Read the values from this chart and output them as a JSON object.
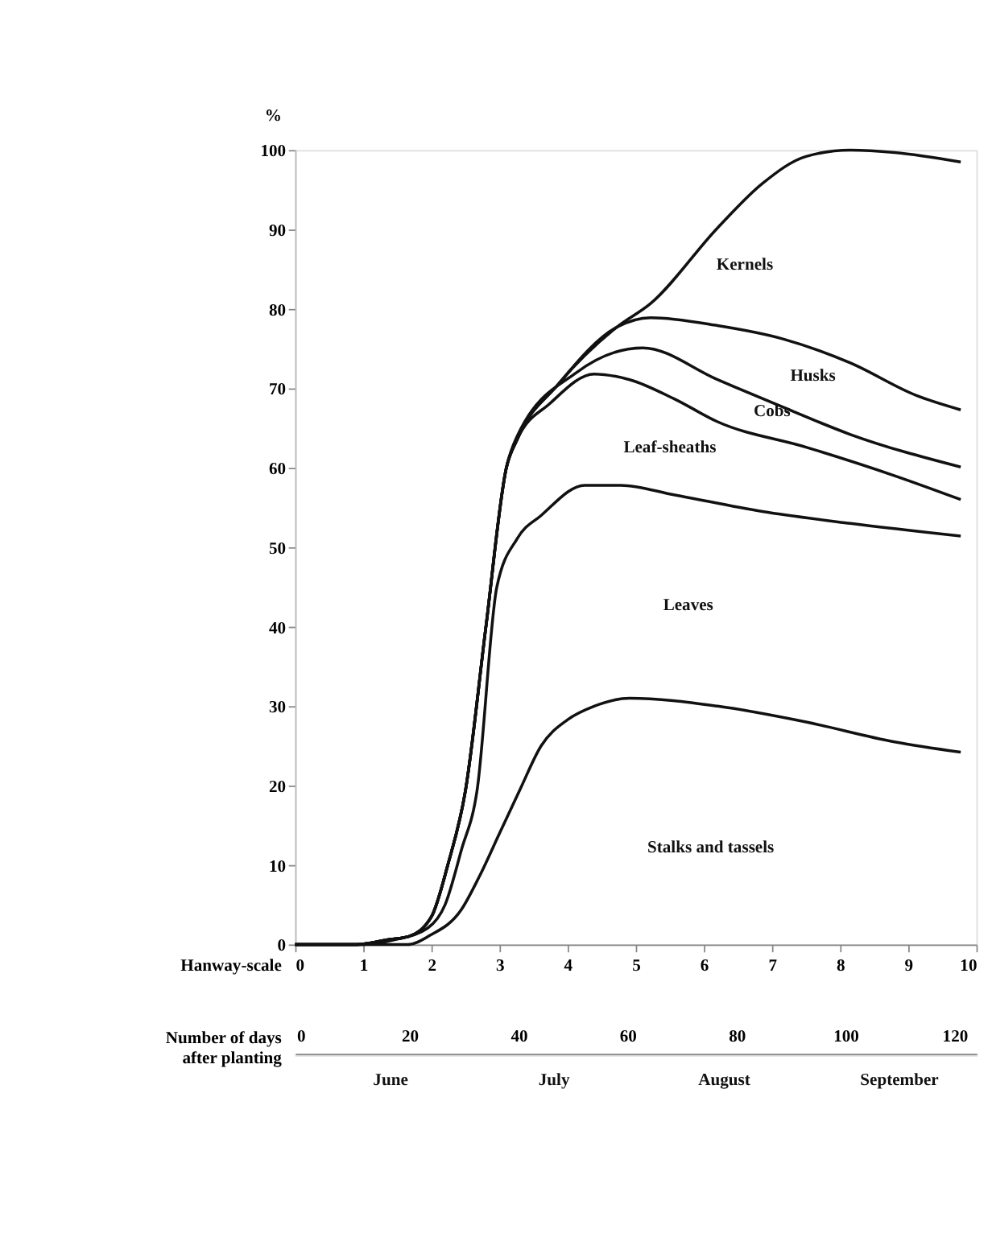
{
  "chart_data": {
    "type": "line",
    "ylabel": "%",
    "xlabel": "Hanway-scale",
    "x2label": "Number of days after planting",
    "xlim": [
      0,
      10
    ],
    "xticks": [
      0,
      1,
      2,
      3,
      4,
      5,
      6,
      7,
      8,
      9,
      10
    ],
    "x2lim": [
      -1,
      124
    ],
    "x2ticks": [
      0,
      20,
      40,
      60,
      80,
      100,
      120
    ],
    "ylim": [
      0,
      100
    ],
    "yticks": [
      0,
      10,
      20,
      30,
      40,
      50,
      60,
      70,
      80,
      90,
      100
    ],
    "grid": false,
    "series": [
      {
        "color": "#111111",
        "x": [
          0,
          0.9,
          1.36,
          1.66,
          2.0,
          2.24,
          2.5,
          2.8,
          3.1,
          3.26,
          3.86,
          4.72,
          5.22,
          6.2,
          6.86,
          7.5,
          8.15,
          8.8,
          9.77
        ],
        "values": [
          0,
          0,
          0.6,
          1,
          3.5,
          10,
          19.4,
          40,
          60,
          63.6,
          70.5,
          77.7,
          80.7,
          90.2,
          95.8,
          99.2,
          100,
          99.7,
          98.5
        ]
      },
      {
        "color": "#111111",
        "x": [
          0,
          0.9,
          1.36,
          1.66,
          2.0,
          2.24,
          2.5,
          2.8,
          3.1,
          3.26,
          3.86,
          4.72,
          5.22,
          6.2,
          7.17,
          8.15,
          9.12,
          9.77
        ],
        "values": [
          0,
          0,
          0.6,
          1,
          3.5,
          10,
          19.4,
          40,
          60,
          63.6,
          70.5,
          77.7,
          78.9,
          77.9,
          76.2,
          73.2,
          69.1,
          67.3
        ]
      },
      {
        "color": "#111111",
        "x": [
          0,
          0.9,
          1.36,
          1.66,
          2.0,
          2.24,
          2.5,
          2.8,
          3.1,
          3.26,
          4.13,
          5.1,
          6.2,
          7.17,
          8.15,
          9.77
        ],
        "values": [
          0,
          0,
          0.6,
          1,
          3.5,
          10,
          19.4,
          40,
          60,
          64,
          72,
          75.1,
          71.1,
          67.6,
          64.2,
          60.1
        ]
      },
      {
        "color": "#111111",
        "x": [
          0,
          0.9,
          1.36,
          1.66,
          2.0,
          2.24,
          2.5,
          2.8,
          3.1,
          3.26,
          3.74,
          4.39,
          4.91,
          5.56,
          6.2,
          7.5,
          8.8,
          9.77
        ],
        "values": [
          0,
          0,
          0.6,
          1,
          3.5,
          10,
          19.4,
          40,
          60,
          63.6,
          68.1,
          71.8,
          71.1,
          68.7,
          65.8,
          62.6,
          59,
          56
        ]
      },
      {
        "color": "#111111",
        "x": [
          0,
          1.0,
          1.46,
          1.95,
          2.2,
          2.44,
          2.67,
          2.96,
          3.26,
          3.61,
          4.25,
          4.78,
          5.56,
          6.86,
          8.15,
          9.77
        ],
        "values": [
          0,
          0,
          0.6,
          2.1,
          5,
          11.9,
          19.4,
          45,
          51.1,
          54,
          57.8,
          57.8,
          56.6,
          54.5,
          53,
          51.4
        ]
      },
      {
        "color": "#111111",
        "x": [
          0,
          1.2,
          1.66,
          1.97,
          2.44,
          2.7,
          3.0,
          3.3,
          3.61,
          4.0,
          4.39,
          4.91,
          6.2,
          7.5,
          8.8,
          9.77
        ],
        "values": [
          0,
          0,
          0,
          1.1,
          4.4,
          8.5,
          14,
          19.5,
          25,
          28.3,
          30,
          31,
          30,
          28,
          25.5,
          24.2
        ]
      }
    ],
    "annotations": [
      "Kernels",
      "Husks",
      "Cobs",
      "Leaf-sheaths",
      "Leaves",
      "Stalks and tassels",
      "June",
      "July",
      "August",
      "September"
    ]
  }
}
